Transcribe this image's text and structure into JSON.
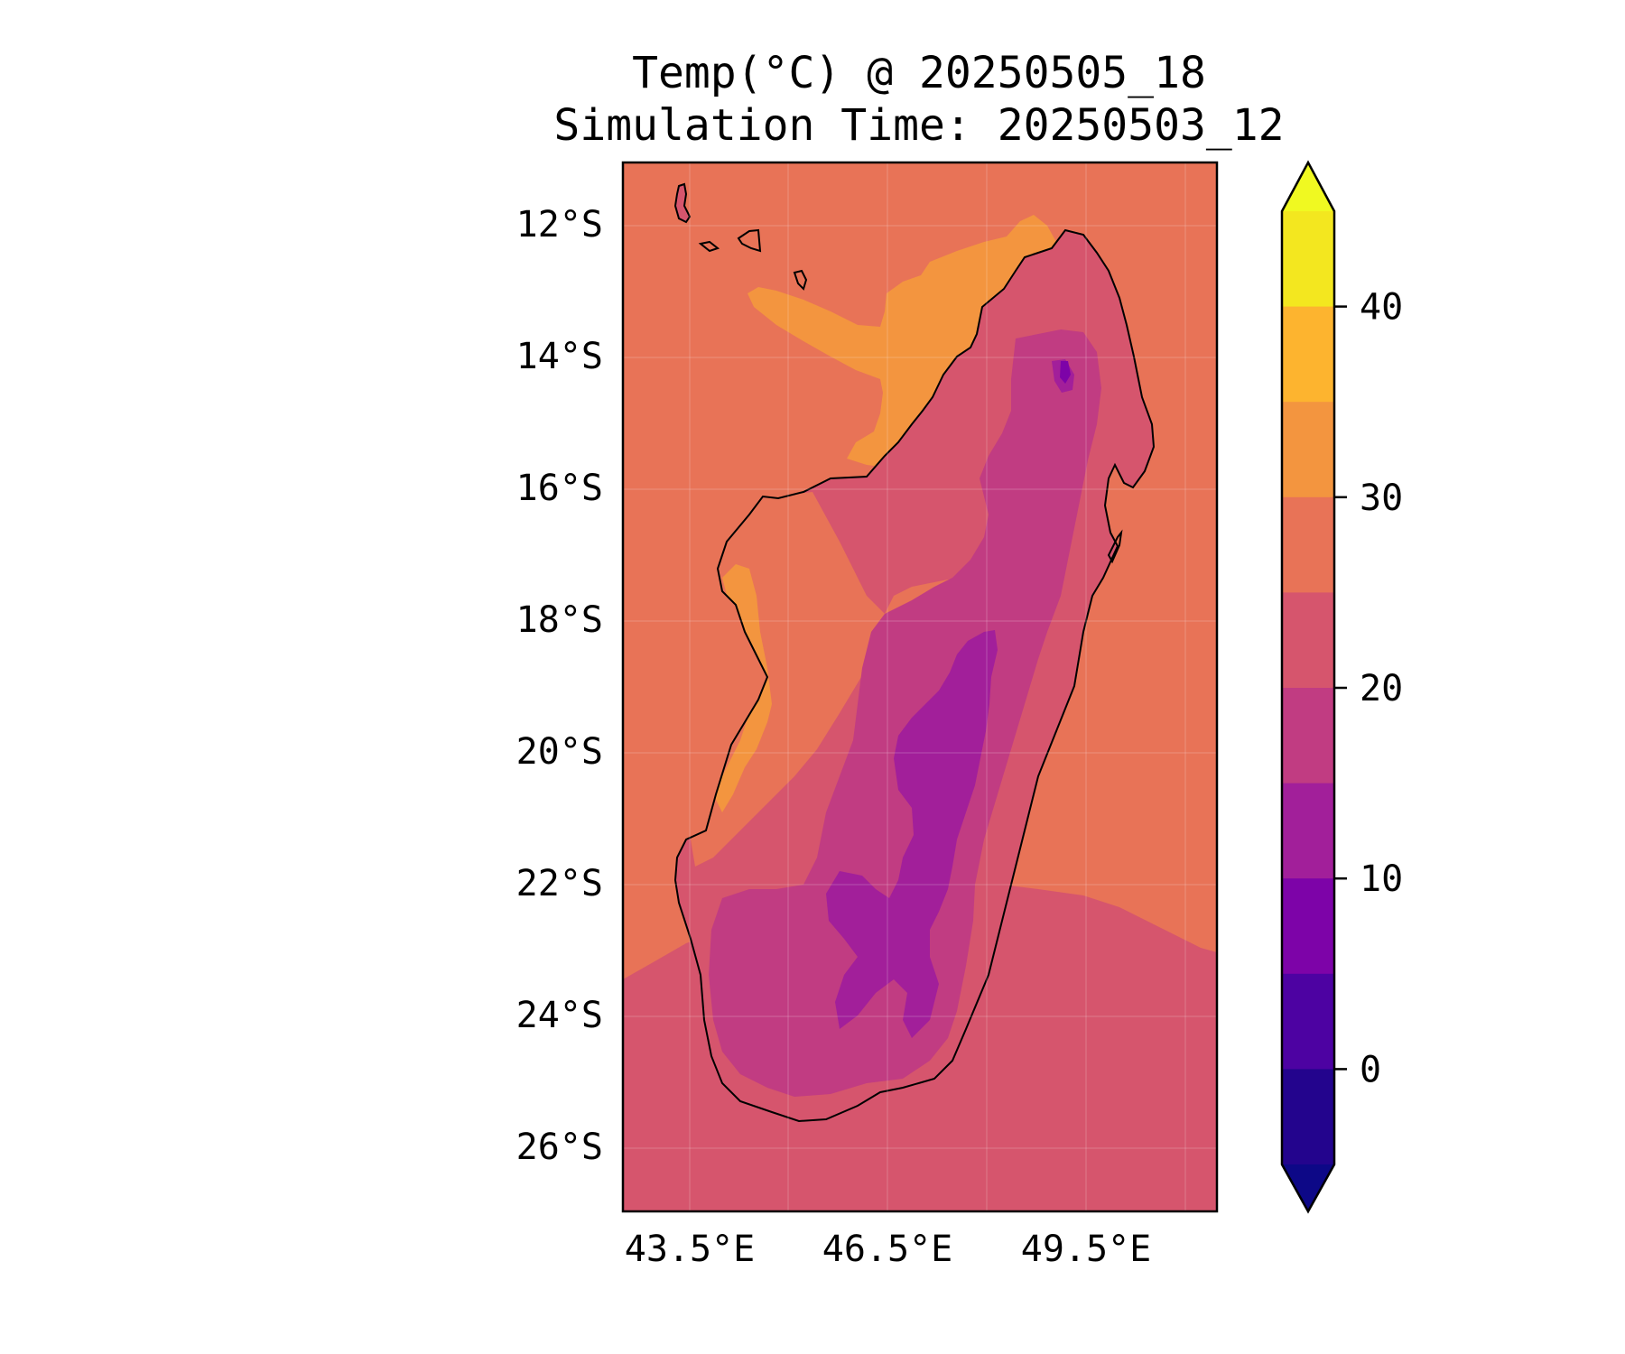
{
  "title": {
    "line1": "Temp(°C) @ 20250505_18",
    "line2": "Simulation Time: 20250503_12"
  },
  "map": {
    "x_ticks": [
      "43.5°E",
      "46.5°E",
      "49.5°E"
    ],
    "y_ticks": [
      "12°S",
      "14°S",
      "16°S",
      "18°S",
      "20°S",
      "22°S",
      "24°S",
      "26°S"
    ],
    "lon_range": [
      41.5,
      50.5
    ],
    "lat_range": [
      -27,
      -11
    ],
    "grid": true
  },
  "colorbar": {
    "ticks": [
      "40",
      "30",
      "20",
      "10",
      "0"
    ],
    "bin_colors_top_to_bottom": [
      "#f3e71f",
      "#fdb42f",
      "#f3953f",
      "#e87357",
      "#d6556d",
      "#c13c82",
      "#a21f9a",
      "#7d03a8",
      "#4d02a2",
      "#23048d"
    ],
    "extend_max_color": "#f0f921",
    "extend_min_color": "#0d0887",
    "range": [
      -5,
      45
    ],
    "extend": "both"
  },
  "colors": {
    "ocean_warm": "#e87357",
    "ocean_south": "#d6556d",
    "hot_plume": "#f3953f",
    "land_mid": "#d6556d",
    "land_cool": "#c13c82",
    "highland": "#a21f9a",
    "peak": "#7d03a8"
  }
}
